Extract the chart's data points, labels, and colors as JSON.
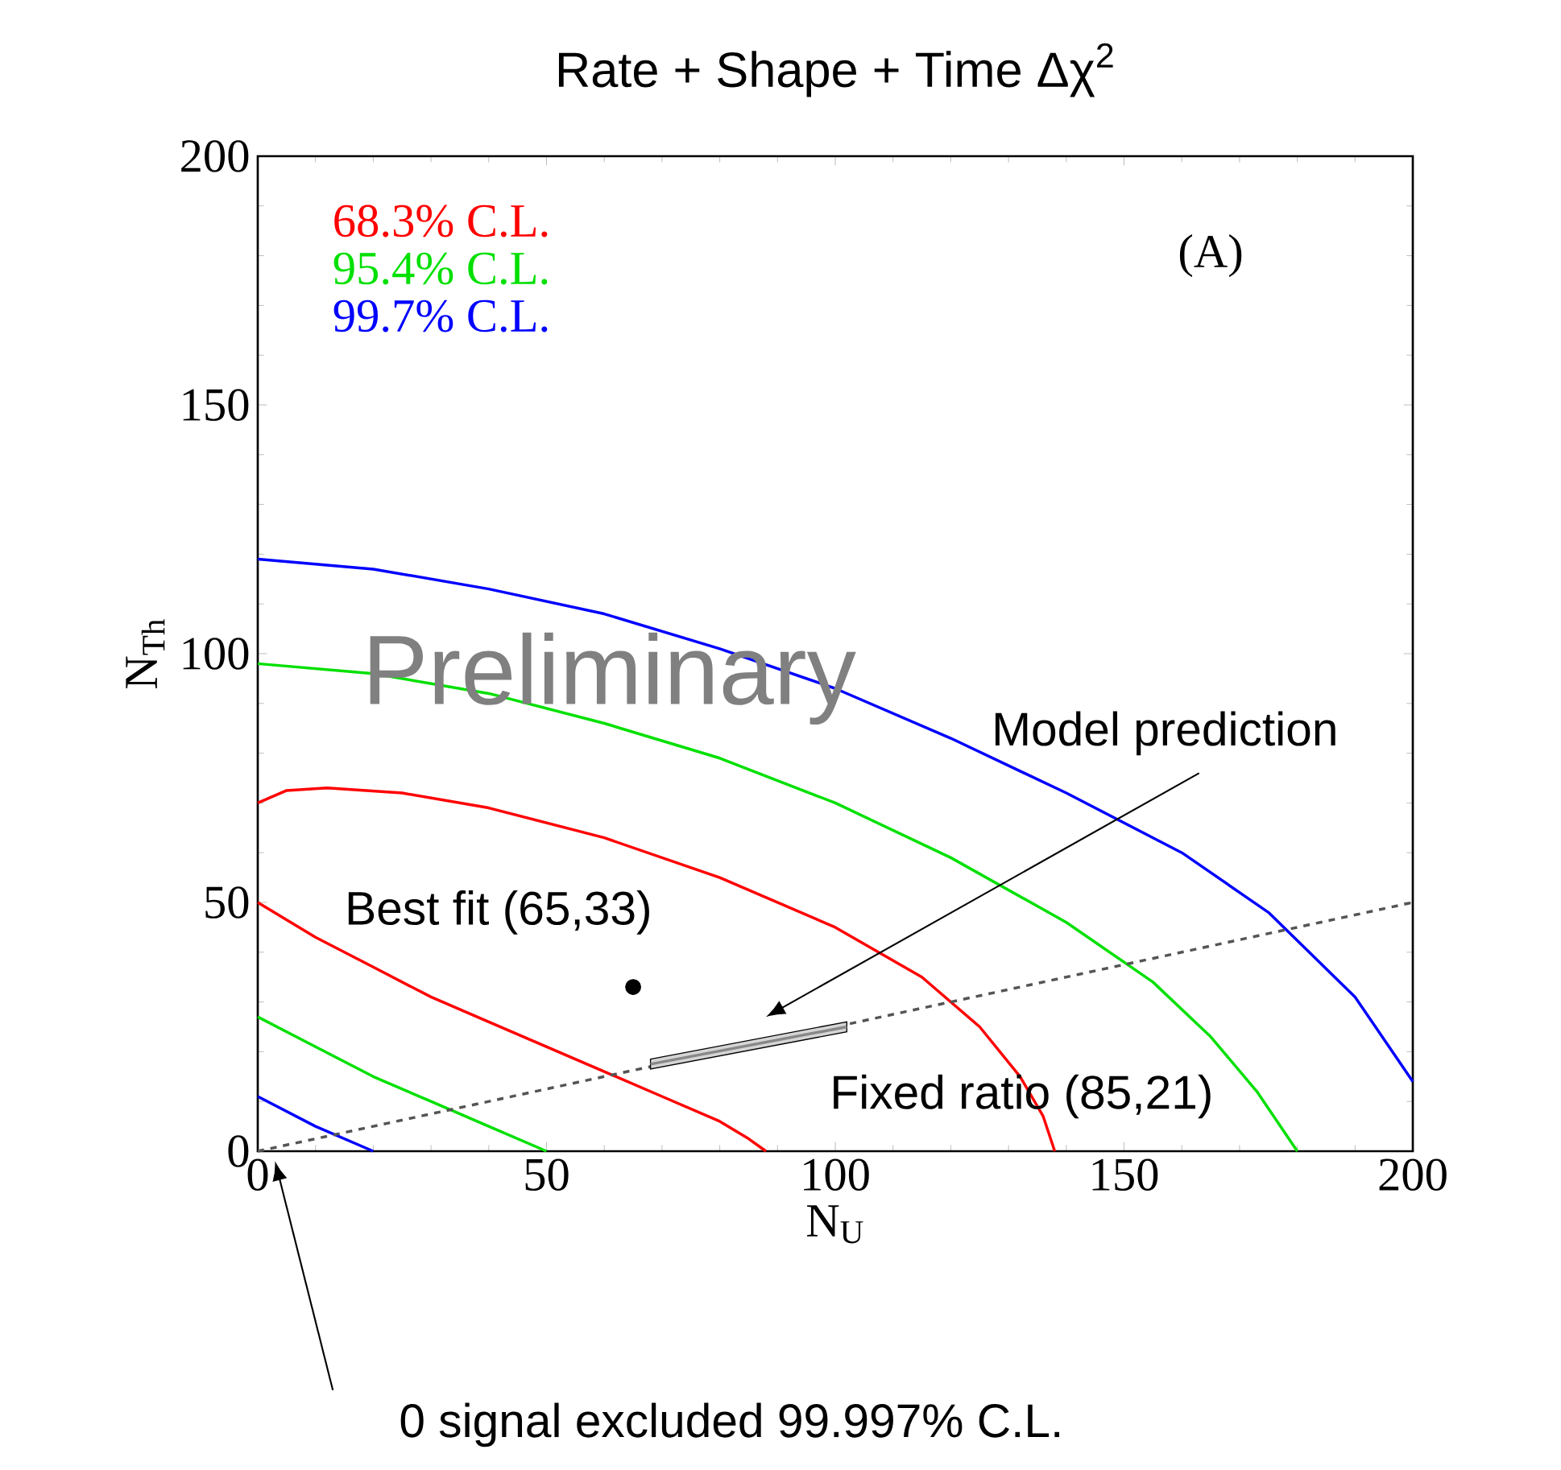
{
  "chart_data": {
    "type": "line",
    "title": "Rate + Shape + Time Δχ$^{2}$",
    "xlabel": "N$_{U}$",
    "ylabel": "N$_{Th}$",
    "xlim": [
      0,
      200
    ],
    "ylim": [
      0,
      200
    ],
    "xticks": [
      0,
      50,
      100,
      150,
      200
    ],
    "yticks": [
      0,
      50,
      100,
      150,
      200
    ],
    "grid": false,
    "legend": "top left",
    "series": [
      {
        "name": "68.3% C.L.",
        "color": "#ff0000",
        "x": [
          0,
          5,
          12,
          25,
          40,
          60,
          80,
          100,
          115,
          125,
          132,
          136,
          138
        ],
        "values": [
          70,
          72.5,
          73,
          72,
          69,
          63,
          55,
          45,
          35,
          25,
          15,
          7,
          0
        ]
      },
      {
        "color": "#ff0000",
        "x": [
          0,
          10,
          20,
          30,
          40,
          50,
          60,
          70,
          80,
          85,
          88
        ],
        "values": [
          50,
          43,
          37,
          31,
          26,
          21,
          16,
          11,
          6,
          2.5,
          0
        ]
      },
      {
        "name": "95.4% C.L.",
        "color": "#00e000",
        "x": [
          0,
          20,
          40,
          60,
          80,
          100,
          120,
          140,
          155,
          165,
          173,
          180
        ],
        "values": [
          98,
          96,
          92,
          86,
          79,
          70,
          59,
          46,
          34,
          23,
          12,
          0
        ]
      },
      {
        "color": "#00e000",
        "x": [
          0,
          10,
          20,
          30,
          40,
          50
        ],
        "values": [
          27,
          21,
          15,
          10,
          5,
          0
        ]
      },
      {
        "name": "99.7% C.L.",
        "color": "#0000ff",
        "x": [
          0,
          20,
          40,
          60,
          80,
          100,
          120,
          140,
          160,
          175,
          190,
          200
        ],
        "values": [
          119,
          117,
          113,
          108,
          101,
          93,
          83,
          72,
          60,
          48,
          31,
          14
        ]
      },
      {
        "color": "#0000ff",
        "x": [
          0,
          10,
          20
        ],
        "values": [
          11,
          5,
          0
        ]
      },
      {
        "color": "#555555",
        "line_style": "dashed",
        "x": [
          0,
          200
        ],
        "values": [
          0,
          50
        ]
      },
      {
        "color": "#888888",
        "x": [
          68,
          102
        ],
        "values": [
          17.5,
          25
        ],
        "lower": [
          16.5,
          24
        ],
        "upper": [
          18.5,
          26
        ]
      },
      {
        "type": "scatter",
        "marker": "circle",
        "color": "#000000",
        "x": [
          65
        ],
        "values": [
          33
        ]
      }
    ],
    "annotations": [
      "(A)",
      "Preliminary",
      "Best fit (65,33)",
      "Fixed ratio (85,21)",
      "Model prediction",
      "0 signal  excluded 99.997% C.L."
    ]
  }
}
